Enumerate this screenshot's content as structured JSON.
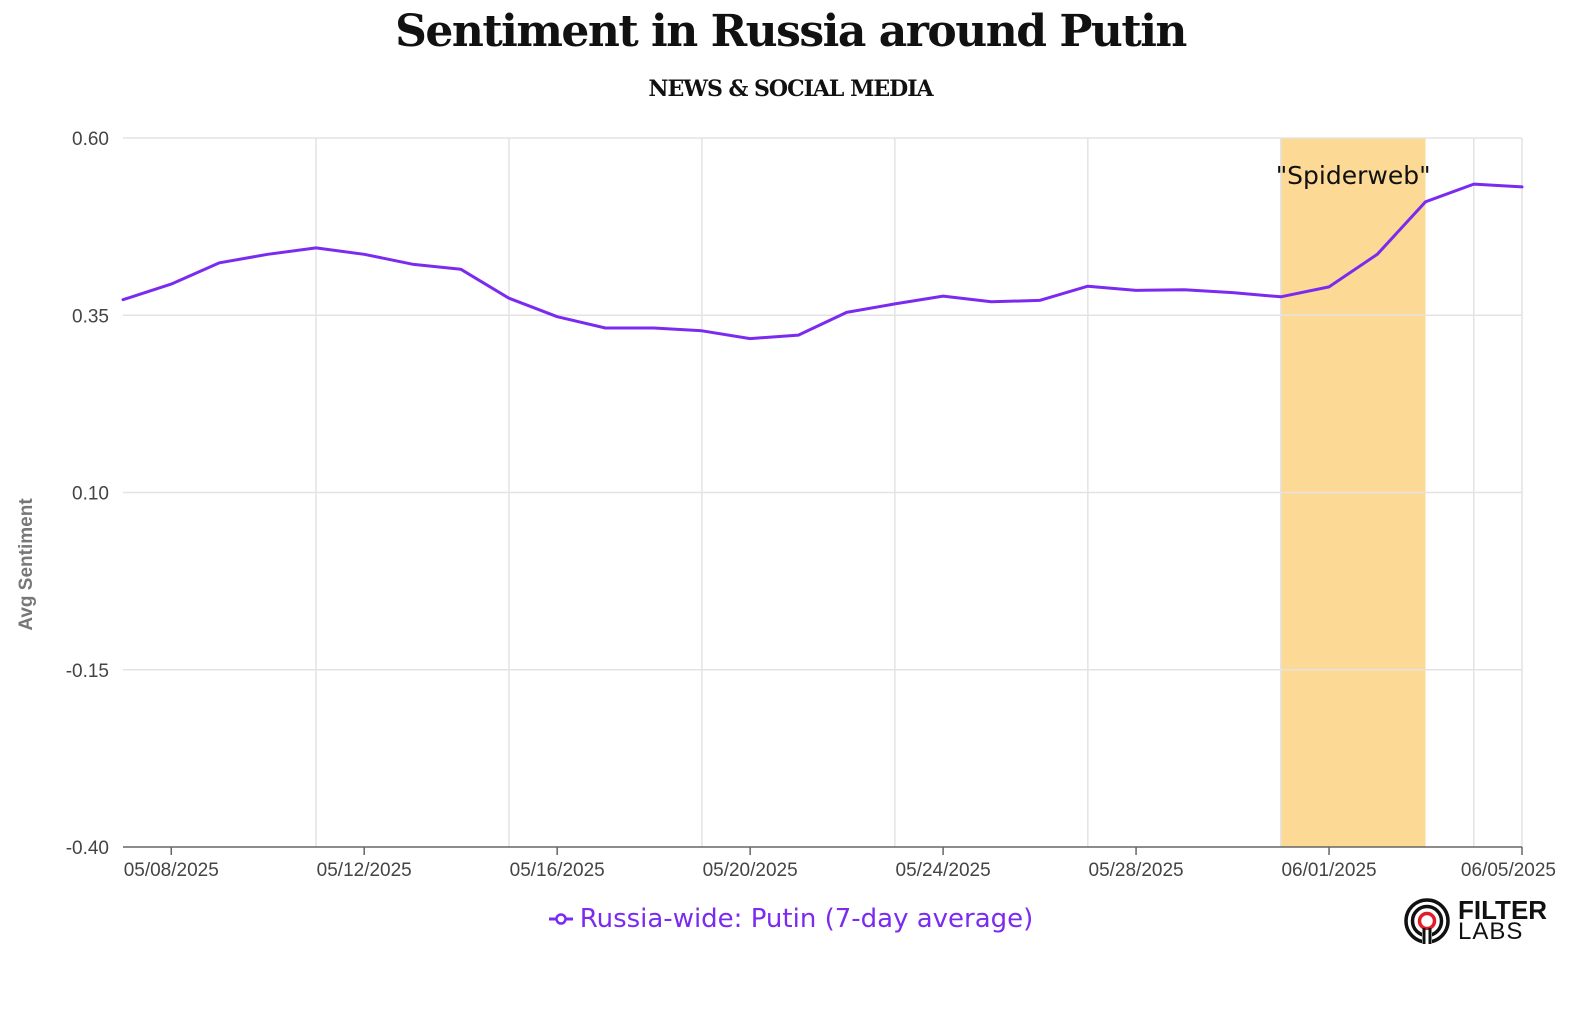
{
  "chart_data": {
    "type": "line",
    "title": "Sentiment in Russia around Putin",
    "subtitle": "NEWS & SOCIAL MEDIA",
    "xlabel": "",
    "ylabel": "Avg Sentiment",
    "ylim": [
      -0.4,
      0.6
    ],
    "yticks": [
      "0.60",
      "0.35",
      "0.10",
      "-0.15",
      "-0.40"
    ],
    "x_range": [
      "05/07/2025",
      "06/05/2025"
    ],
    "xticks": [
      "05/08/2025",
      "05/12/2025",
      "05/16/2025",
      "05/20/2025",
      "05/24/2025",
      "05/28/2025",
      "06/01/2025",
      "06/05/2025"
    ],
    "grid": true,
    "legend_position": "bottom-center",
    "highlight": {
      "from": "05/31/2025",
      "to": "06/03/2025",
      "label": "\"Spiderweb\"",
      "color": "#fcd994"
    },
    "series": [
      {
        "name": "Russia-wide: Putin (7-day average)",
        "color": "#7b2bf0",
        "x": [
          "05/07/2025",
          "05/08/2025",
          "05/09/2025",
          "05/10/2025",
          "05/11/2025",
          "05/12/2025",
          "05/13/2025",
          "05/14/2025",
          "05/15/2025",
          "05/16/2025",
          "05/17/2025",
          "05/18/2025",
          "05/19/2025",
          "05/20/2025",
          "05/21/2025",
          "05/22/2025",
          "05/23/2025",
          "05/24/2025",
          "05/25/2025",
          "05/26/2025",
          "05/27/2025",
          "05/28/2025",
          "05/29/2025",
          "05/30/2025",
          "05/31/2025",
          "06/01/2025",
          "06/02/2025",
          "06/03/2025",
          "06/04/2025",
          "06/05/2025"
        ],
        "values": [
          0.372,
          0.394,
          0.424,
          0.436,
          0.445,
          0.436,
          0.422,
          0.415,
          0.374,
          0.348,
          0.332,
          0.332,
          0.328,
          0.317,
          0.322,
          0.354,
          0.366,
          0.377,
          0.369,
          0.371,
          0.391,
          0.385,
          0.386,
          0.382,
          0.376,
          0.39,
          0.436,
          0.51,
          0.535,
          0.531
        ]
      }
    ]
  },
  "colors": {
    "series": "#7b2bf0",
    "highlight": "#fcd994",
    "grid": "#e3e3e3",
    "axis": "#666666"
  },
  "legend": {
    "label": "Russia-wide: Putin (7-day average)",
    "icon": "line-circle-marker-icon"
  },
  "logo": {
    "line1": "FILTER",
    "line2": "LABS",
    "icon": "filter-labs-logo-icon"
  }
}
